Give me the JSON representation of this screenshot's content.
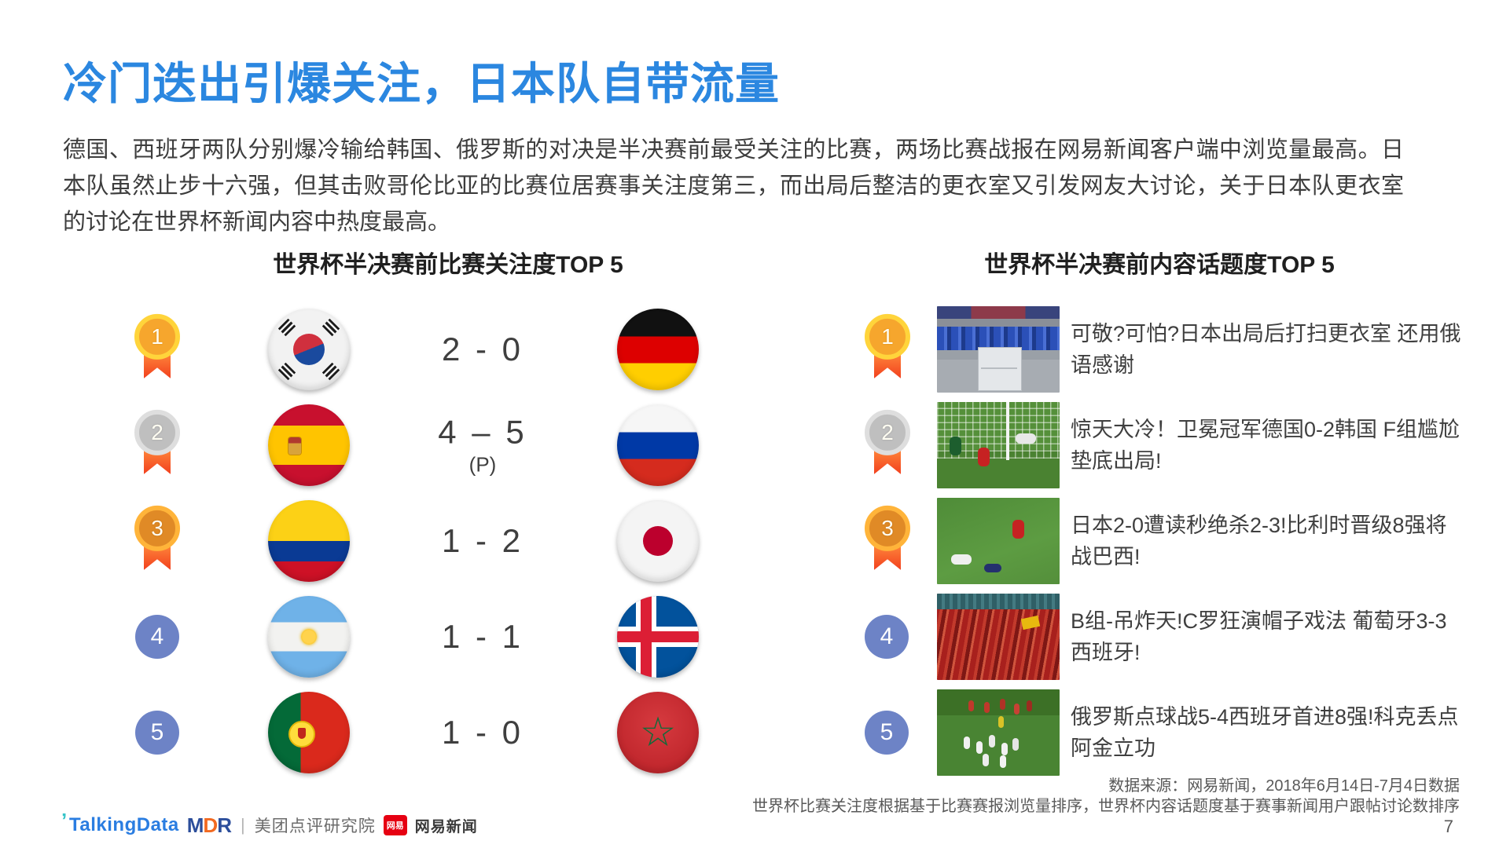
{
  "slide": {
    "title": "冷门迭出引爆关注，日本队自带流量",
    "intro": "德国、西班牙两队分别爆冷输给韩国、俄罗斯的对决是半决赛前最受关注的比赛，两场比赛战报在网易新闻客户端中浏览量最高。日本队虽然止步十六强，但其击败哥伦比亚的比赛位居赛事关注度第三，而出局后整洁的更衣室又引发网友大讨论，关于日本队更衣室的讨论在世界杯新闻内容中热度最高。",
    "page_number": "7"
  },
  "left_panel": {
    "heading": "世界杯半决赛前比赛关注度TOP 5",
    "rows": [
      {
        "rank": "1",
        "team_left": "south-korea",
        "score": "2 - 0",
        "score_note": "",
        "team_right": "germany"
      },
      {
        "rank": "2",
        "team_left": "spain",
        "score": "4 – 5",
        "score_note": "(P)",
        "team_right": "russia"
      },
      {
        "rank": "3",
        "team_left": "colombia",
        "score": "1 - 2",
        "score_note": "",
        "team_right": "japan"
      },
      {
        "rank": "4",
        "team_left": "argentina",
        "score": "1 - 1",
        "score_note": "",
        "team_right": "iceland"
      },
      {
        "rank": "5",
        "team_left": "portugal",
        "score": "1 - 0",
        "score_note": "",
        "team_right": "morocco"
      }
    ]
  },
  "right_panel": {
    "heading": "世界杯半决赛前内容话题度TOP 5",
    "rows": [
      {
        "rank": "1",
        "thumbnail": "japan-locker-room-photo",
        "headline": "可敬?可怕?日本出局后打扫更衣室 还用俄语感谢"
      },
      {
        "rank": "2",
        "thumbnail": "germany-korea-goal-photo",
        "headline": "惊天大冷！卫冕冠军德国0-2韩国 F组尴尬垫底出局!"
      },
      {
        "rank": "3",
        "thumbnail": "japan-belgium-match-photo",
        "headline": "日本2-0遭读秒绝杀2-3!比利时晋级8强将战巴西!"
      },
      {
        "rank": "4",
        "thumbnail": "portugal-spain-fans-photo",
        "headline": "B组-吊炸天!C罗狂演帽子戏法 葡萄牙3-3西班牙!"
      },
      {
        "rank": "5",
        "thumbnail": "russia-spain-penalty-photo",
        "headline": "俄罗斯点球战5-4西班牙首进8强!科克丢点阿金立功"
      }
    ]
  },
  "footer": {
    "source_line1": "数据来源：网易新闻，2018年6月14日-7月4日数据",
    "source_line2": "世界杯比赛关注度根据基于比赛赛报浏览量排序，世界杯内容话题度基于赛事新闻用户跟帖讨论数排序",
    "logos": {
      "talkingdata": "TalkingData",
      "mdr_letters": [
        "M",
        "D",
        "R"
      ],
      "divider": "|",
      "meituan": "美团点评研究院",
      "netease_badge": "网易",
      "netease": "网易新闻"
    }
  },
  "colors": {
    "accent_blue": "#2b87e0",
    "heading_dark": "#1f1f1f",
    "body_text": "#3d3d3d",
    "medal_gold": "#f6a62d",
    "medal_silver": "#bfbfbf",
    "medal_bronze": "#e08a26",
    "ribbon_orange_red": "#f2401e",
    "rank_blue": "#6d83c6",
    "footer_gray": "#595959",
    "netease_red": "#e60012"
  }
}
